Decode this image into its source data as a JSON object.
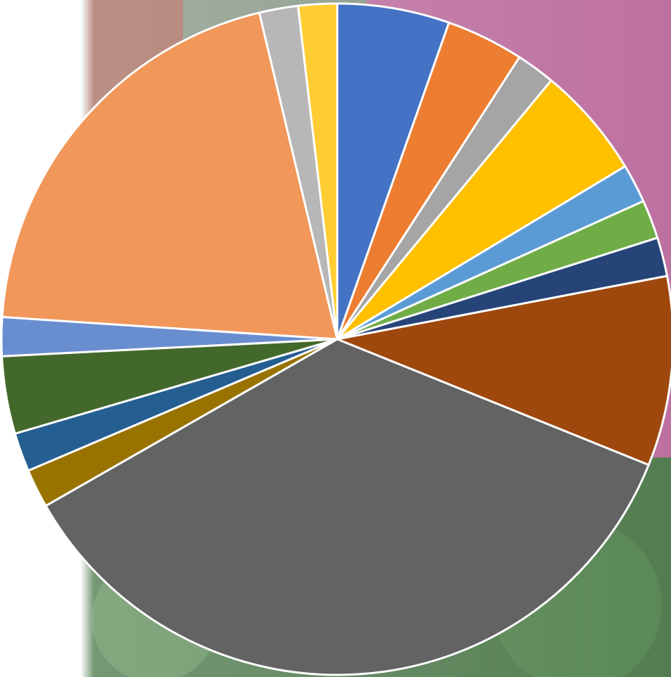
{
  "chart_data": {
    "type": "pie",
    "title": "",
    "start_angle_deg": 0,
    "direction": "clockwise",
    "slices": [
      {
        "value": 5.5,
        "color": "#4472C4"
      },
      {
        "value": 3.8,
        "color": "#ED7D31"
      },
      {
        "value": 1.9,
        "color": "#A5A5A5"
      },
      {
        "value": 5.5,
        "color": "#FFC000"
      },
      {
        "value": 1.9,
        "color": "#5B9BD5"
      },
      {
        "value": 1.9,
        "color": "#70AD47"
      },
      {
        "value": 1.9,
        "color": "#264478"
      },
      {
        "value": 9.3,
        "color": "#9E480E"
      },
      {
        "value": 36.3,
        "color": "#636363"
      },
      {
        "value": 1.9,
        "color": "#997300"
      },
      {
        "value": 1.9,
        "color": "#255E91"
      },
      {
        "value": 3.8,
        "color": "#43682B"
      },
      {
        "value": 1.9,
        "color": "#698ED0"
      },
      {
        "value": 20.6,
        "color": "#F1975A"
      },
      {
        "value": 1.9,
        "color": "#B7B7B7"
      },
      {
        "value": 1.9,
        "color": "#FFCD33"
      }
    ],
    "legend": "none",
    "data_labels": "none"
  },
  "background": {
    "description_icon": "photo-background"
  }
}
